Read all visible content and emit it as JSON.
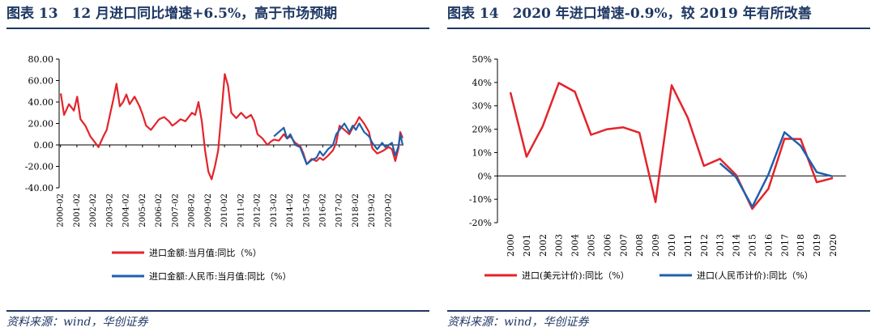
{
  "figures": [
    {
      "id": "p13",
      "title": "图表 13　12 月进口同比增速+6.5%，高于市场预期",
      "source": "资料来源：wind，华创证券"
    },
    {
      "id": "p14",
      "title": "图表 14　2020 年进口增速-0.9%，较 2019 年有所改善",
      "source": "资料来源：wind，华创证券"
    }
  ],
  "chart_data": [
    {
      "type": "line",
      "title": "",
      "xlabel": "",
      "ylabel": "",
      "ylim": [
        -40,
        80
      ],
      "yticks": [
        "80.00",
        "60.00",
        "40.00",
        "20.00",
        "0.00",
        "-20.00",
        "-40.00"
      ],
      "x_tick_labels": [
        "2000-02",
        "2001-02",
        "2002-02",
        "2003-02",
        "2004-02",
        "2005-02",
        "2006-02",
        "2007-02",
        "2008-02",
        "2009-02",
        "2010-02",
        "2011-02",
        "2012-02",
        "2013-02",
        "2014-02",
        "2015-02",
        "2016-02",
        "2017-02",
        "2018-02",
        "2019-02",
        "2020-02"
      ],
      "legend_position": "bottom",
      "grid": false,
      "series": [
        {
          "name": "进口金额:当月值:同比（%）",
          "color": "#e3242b",
          "points": [
            [
              2000.1,
              48
            ],
            [
              2000.3,
              28
            ],
            [
              2000.6,
              38
            ],
            [
              2000.9,
              32
            ],
            [
              2001.1,
              45
            ],
            [
              2001.3,
              24
            ],
            [
              2001.6,
              18
            ],
            [
              2001.9,
              8
            ],
            [
              2002.1,
              4
            ],
            [
              2002.4,
              -2
            ],
            [
              2002.7,
              8
            ],
            [
              2002.9,
              14
            ],
            [
              2003.1,
              28
            ],
            [
              2003.3,
              42
            ],
            [
              2003.5,
              57
            ],
            [
              2003.7,
              36
            ],
            [
              2003.9,
              40
            ],
            [
              2004.1,
              47
            ],
            [
              2004.3,
              38
            ],
            [
              2004.6,
              45
            ],
            [
              2004.9,
              36
            ],
            [
              2005.1,
              28
            ],
            [
              2005.3,
              18
            ],
            [
              2005.6,
              14
            ],
            [
              2005.9,
              20
            ],
            [
              2006.1,
              24
            ],
            [
              2006.4,
              26
            ],
            [
              2006.7,
              22
            ],
            [
              2006.9,
              18
            ],
            [
              2007.1,
              20
            ],
            [
              2007.4,
              24
            ],
            [
              2007.7,
              22
            ],
            [
              2007.9,
              26
            ],
            [
              2008.1,
              30
            ],
            [
              2008.3,
              28
            ],
            [
              2008.5,
              40
            ],
            [
              2008.7,
              22
            ],
            [
              2008.9,
              -5
            ],
            [
              2009.1,
              -25
            ],
            [
              2009.3,
              -32
            ],
            [
              2009.5,
              -20
            ],
            [
              2009.7,
              -5
            ],
            [
              2009.9,
              30
            ],
            [
              2010.1,
              66
            ],
            [
              2010.3,
              55
            ],
            [
              2010.5,
              30
            ],
            [
              2010.8,
              25
            ],
            [
              2011.1,
              30
            ],
            [
              2011.4,
              25
            ],
            [
              2011.7,
              28
            ],
            [
              2011.9,
              22
            ],
            [
              2012.1,
              10
            ],
            [
              2012.4,
              6
            ],
            [
              2012.7,
              0
            ],
            [
              2012.9,
              3
            ],
            [
              2013.1,
              5
            ],
            [
              2013.4,
              4
            ],
            [
              2013.7,
              10
            ],
            [
              2013.9,
              6
            ],
            [
              2014.1,
              8
            ],
            [
              2014.4,
              2
            ],
            [
              2014.7,
              -1
            ],
            [
              2014.9,
              -8
            ],
            [
              2015.1,
              -18
            ],
            [
              2015.4,
              -13
            ],
            [
              2015.7,
              -15
            ],
            [
              2015.9,
              -12
            ],
            [
              2016.1,
              -14
            ],
            [
              2016.4,
              -10
            ],
            [
              2016.7,
              -5
            ],
            [
              2016.9,
              2
            ],
            [
              2017.1,
              18
            ],
            [
              2017.4,
              14
            ],
            [
              2017.7,
              10
            ],
            [
              2017.9,
              16
            ],
            [
              2018.1,
              20
            ],
            [
              2018.3,
              26
            ],
            [
              2018.6,
              20
            ],
            [
              2018.9,
              12
            ],
            [
              2019.1,
              -3
            ],
            [
              2019.4,
              -8
            ],
            [
              2019.7,
              -6
            ],
            [
              2019.9,
              -4
            ],
            [
              2020.1,
              -2
            ],
            [
              2020.3,
              -4
            ],
            [
              2020.5,
              -15
            ],
            [
              2020.7,
              -3
            ],
            [
              2020.8,
              12
            ],
            [
              2020.95,
              6.5
            ]
          ]
        },
        {
          "name": "进口金额:人民币:当月值:同比（%）",
          "color": "#1f5fad",
          "points": [
            [
              2013.1,
              8
            ],
            [
              2013.4,
              12
            ],
            [
              2013.7,
              16
            ],
            [
              2013.9,
              6
            ],
            [
              2014.1,
              10
            ],
            [
              2014.4,
              0
            ],
            [
              2014.7,
              -2
            ],
            [
              2014.9,
              -10
            ],
            [
              2015.1,
              -18
            ],
            [
              2015.4,
              -14
            ],
            [
              2015.7,
              -12
            ],
            [
              2015.9,
              -6
            ],
            [
              2016.1,
              -10
            ],
            [
              2016.4,
              -4
            ],
            [
              2016.7,
              0
            ],
            [
              2016.9,
              10
            ],
            [
              2017.1,
              14
            ],
            [
              2017.4,
              20
            ],
            [
              2017.7,
              12
            ],
            [
              2017.9,
              18
            ],
            [
              2018.1,
              14
            ],
            [
              2018.3,
              20
            ],
            [
              2018.6,
              12
            ],
            [
              2018.9,
              8
            ],
            [
              2019.1,
              2
            ],
            [
              2019.4,
              -4
            ],
            [
              2019.7,
              2
            ],
            [
              2019.9,
              -2
            ],
            [
              2020.1,
              0
            ],
            [
              2020.3,
              2
            ],
            [
              2020.5,
              -10
            ],
            [
              2020.7,
              -1
            ],
            [
              2020.8,
              10
            ],
            [
              2020.95,
              0
            ]
          ]
        }
      ]
    },
    {
      "type": "line",
      "title": "",
      "xlabel": "",
      "ylabel": "",
      "ylim": [
        -20,
        50
      ],
      "yticks": [
        "50%",
        "40%",
        "30%",
        "20%",
        "10%",
        "0%",
        "-10%",
        "-20%"
      ],
      "categories": [
        "2000",
        "2001",
        "2002",
        "2003",
        "2004",
        "2005",
        "2006",
        "2007",
        "2008",
        "2009",
        "2010",
        "2011",
        "2012",
        "2013",
        "2014",
        "2015",
        "2016",
        "2017",
        "2018",
        "2019",
        "2020"
      ],
      "legend_position": "bottom",
      "grid": false,
      "series": [
        {
          "name": "进口(美元计价):同比（%）",
          "color": "#e3242b",
          "values": [
            35.8,
            8.2,
            21.2,
            39.8,
            36.0,
            17.6,
            20.0,
            20.8,
            18.5,
            -11.2,
            38.8,
            24.9,
            4.3,
            7.3,
            0.4,
            -14.1,
            -5.5,
            15.9,
            15.8,
            -2.7,
            -0.9
          ]
        },
        {
          "name": "进口(人民币计价):同比（%）",
          "color": "#1f5fad",
          "values": [
            null,
            null,
            null,
            null,
            null,
            null,
            null,
            null,
            null,
            null,
            null,
            null,
            null,
            5.4,
            -0.6,
            -13.2,
            0.6,
            18.7,
            12.9,
            1.6,
            -0.2
          ]
        }
      ]
    }
  ]
}
